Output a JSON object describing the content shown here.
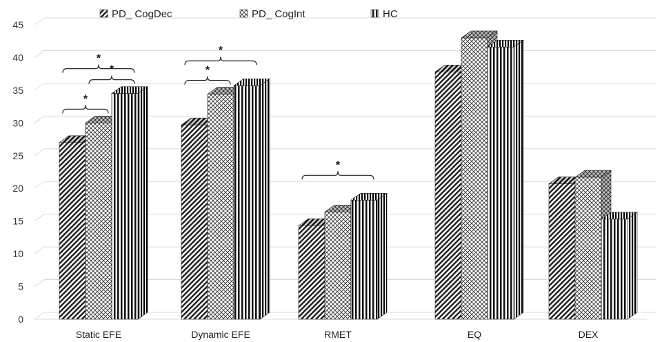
{
  "chart_data": {
    "type": "bar",
    "style": "3d-clustered-column",
    "title": "",
    "xlabel": "",
    "ylabel": "",
    "ylim": [
      0,
      45
    ],
    "yticks": [
      0,
      5,
      10,
      15,
      20,
      25,
      30,
      35,
      40,
      45
    ],
    "grid": true,
    "legend_position": "top",
    "categories": [
      "Static EFE",
      "Dynamic EFE",
      "RMET",
      "EQ",
      "DEX"
    ],
    "series": [
      {
        "name": "PD_ CogDec",
        "pattern": "diagonal-hatch",
        "values": [
          27,
          29.7,
          14.3,
          37.8,
          20.7
        ]
      },
      {
        "name": "PD_ CogInt",
        "pattern": "crosshatch",
        "values": [
          30,
          34.4,
          16.4,
          43,
          21.7
        ]
      },
      {
        "name": "HC",
        "pattern": "vertical-stripes",
        "values": [
          34.5,
          35.7,
          18.2,
          41.6,
          15.3
        ]
      }
    ],
    "significance": [
      {
        "category": "Static EFE",
        "from": 0,
        "to": 1,
        "label": "*"
      },
      {
        "category": "Static EFE",
        "from": 1,
        "to": 2,
        "label": "*"
      },
      {
        "category": "Static EFE",
        "from": 0,
        "to": 2,
        "label": "*"
      },
      {
        "category": "Dynamic EFE",
        "from": 0,
        "to": 1,
        "label": "*"
      },
      {
        "category": "Dynamic EFE",
        "from": 0,
        "to": 2,
        "label": "*"
      },
      {
        "category": "RMET",
        "from": 0,
        "to": 2,
        "label": "*"
      }
    ],
    "colors": {
      "bar": "#1a1a1a",
      "grid": "#d9d9d9",
      "text": "#222222"
    }
  }
}
